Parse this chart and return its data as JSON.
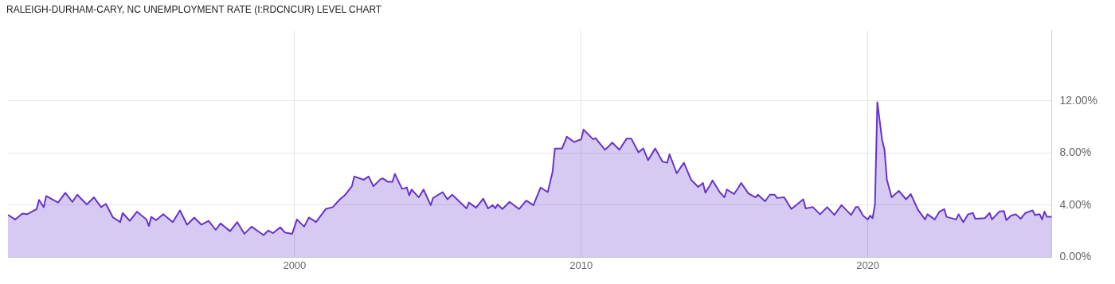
{
  "chart_data": {
    "type": "area",
    "title": "RALEIGH-DURHAM-CARY, NC UNEMPLOYMENT RATE (I:RDCNCUR) LEVEL CHART",
    "x": [
      "1990-01",
      "1990-04",
      "1990-07",
      "1990-09",
      "1991-01",
      "1991-02",
      "1991-04",
      "1991-05",
      "1991-10",
      "1992-01",
      "1992-04",
      "1992-06",
      "1992-10",
      "1993-01",
      "1993-04",
      "1993-06",
      "1993-09",
      "1993-12",
      "1994-01",
      "1994-04",
      "1994-07",
      "1994-11",
      "1994-12",
      "1995-01",
      "1995-03",
      "1995-06",
      "1995-10",
      "1996-01",
      "1996-04",
      "1996-07",
      "1996-10",
      "1997-01",
      "1997-04",
      "1997-06",
      "1997-10",
      "1998-01",
      "1998-04",
      "1998-07",
      "1998-12",
      "1999-02",
      "1999-04",
      "1999-07",
      "1999-09",
      "1999-12",
      "2000-02",
      "2000-05",
      "2000-07",
      "2000-10",
      "2001-02",
      "2001-05",
      "2001-08",
      "2001-10",
      "2002-01",
      "2002-02",
      "2002-06",
      "2002-08",
      "2002-10",
      "2003-01",
      "2003-02",
      "2003-04",
      "2003-06",
      "2003-07",
      "2003-10",
      "2003-12",
      "2004-01",
      "2004-02",
      "2004-05",
      "2004-07",
      "2004-10",
      "2004-11",
      "2005-03",
      "2005-05",
      "2005-07",
      "2006-01",
      "2006-02",
      "2006-05",
      "2006-08",
      "2006-10",
      "2006-12",
      "2007-01",
      "2007-02",
      "2007-04",
      "2007-07",
      "2007-11",
      "2008-02",
      "2008-05",
      "2008-07",
      "2008-08",
      "2008-11",
      "2009-01",
      "2009-02",
      "2009-05",
      "2009-07",
      "2009-10",
      "2010-01",
      "2010-02",
      "2010-06",
      "2010-07",
      "2010-11",
      "2011-01",
      "2011-02",
      "2011-05",
      "2011-08",
      "2011-10",
      "2012-01",
      "2012-03",
      "2012-05",
      "2012-08",
      "2012-11",
      "2013-01",
      "2013-02",
      "2013-05",
      "2013-08",
      "2013-11",
      "2014-02",
      "2014-04",
      "2014-05",
      "2014-07",
      "2014-08",
      "2014-11",
      "2015-01",
      "2015-02",
      "2015-05",
      "2015-07",
      "2015-08",
      "2015-11",
      "2016-02",
      "2016-03",
      "2016-06",
      "2016-08",
      "2016-10",
      "2016-11",
      "2017-02",
      "2017-05",
      "2017-10",
      "2017-11",
      "2018-02",
      "2018-05",
      "2018-08",
      "2018-11",
      "2019-02",
      "2019-06",
      "2019-08",
      "2019-09",
      "2019-11",
      "2020-01",
      "2020-02",
      "2020-03",
      "2020-04",
      "2020-05",
      "2020-07",
      "2020-08",
      "2020-09",
      "2020-11",
      "2021-02",
      "2021-05",
      "2021-07",
      "2021-10",
      "2022-01",
      "2022-02",
      "2022-05",
      "2022-07",
      "2022-09",
      "2022-10",
      "2023-02",
      "2023-03",
      "2023-05",
      "2023-07",
      "2023-09",
      "2023-10",
      "2024-02",
      "2024-04",
      "2024-05",
      "2024-08",
      "2024-10",
      "2024-11",
      "2025-01",
      "2025-03",
      "2025-05",
      "2025-07",
      "2025-10",
      "2025-11",
      "2026-01",
      "2026-02",
      "2026-03",
      "2026-04",
      "2026-06"
    ],
    "series": [
      {
        "color": "#6633cc",
        "values": [
          3.25,
          2.9,
          3.35,
          3.3,
          3.7,
          4.4,
          3.85,
          4.7,
          4.2,
          4.95,
          4.25,
          4.8,
          4.05,
          4.6,
          3.85,
          4.1,
          3.05,
          2.7,
          3.4,
          2.8,
          3.5,
          2.9,
          2.4,
          3.1,
          2.85,
          3.3,
          2.7,
          3.6,
          2.5,
          3.05,
          2.5,
          2.8,
          2.1,
          2.6,
          2.0,
          2.7,
          1.8,
          2.35,
          1.7,
          2.05,
          1.85,
          2.3,
          1.9,
          1.8,
          2.9,
          2.35,
          3.05,
          2.7,
          3.7,
          3.85,
          4.45,
          4.75,
          5.45,
          6.2,
          5.95,
          6.2,
          5.45,
          6.0,
          6.05,
          5.8,
          5.8,
          6.4,
          5.25,
          5.35,
          4.75,
          5.2,
          4.6,
          5.2,
          4.0,
          4.55,
          5.0,
          4.45,
          4.8,
          3.75,
          4.2,
          3.8,
          4.5,
          3.75,
          4.0,
          3.75,
          4.05,
          3.7,
          4.25,
          3.7,
          4.35,
          4.0,
          4.9,
          5.35,
          5.0,
          6.55,
          8.35,
          8.35,
          9.25,
          8.85,
          9.05,
          9.8,
          9.05,
          9.15,
          8.25,
          8.6,
          8.8,
          8.25,
          9.1,
          9.1,
          8.05,
          8.35,
          7.45,
          8.35,
          7.35,
          7.25,
          7.9,
          6.45,
          7.25,
          5.95,
          5.4,
          5.7,
          4.95,
          5.55,
          5.9,
          5.0,
          4.6,
          5.2,
          4.85,
          5.4,
          5.7,
          4.9,
          4.6,
          4.8,
          4.3,
          4.8,
          4.8,
          4.55,
          4.6,
          3.7,
          4.45,
          3.75,
          3.85,
          3.3,
          3.85,
          3.25,
          4.0,
          3.25,
          3.85,
          3.85,
          3.2,
          2.9,
          3.2,
          3.0,
          4.05,
          11.9,
          9.0,
          8.25,
          5.95,
          4.6,
          5.1,
          4.45,
          4.85,
          3.65,
          2.9,
          3.3,
          2.9,
          3.5,
          3.7,
          3.1,
          2.9,
          3.3,
          2.7,
          3.3,
          3.4,
          2.95,
          3.0,
          3.4,
          2.9,
          3.5,
          3.55,
          2.85,
          3.2,
          3.3,
          2.95,
          3.4,
          3.6,
          3.25,
          3.3,
          2.9,
          3.5,
          3.1,
          3.1
        ]
      }
    ],
    "xlim": [
      "1990-01",
      "2026-06"
    ],
    "xticks": [
      "2000",
      "2010",
      "2020"
    ],
    "ylim": [
      0,
      17.4
    ],
    "yticks": [
      {
        "value": 0,
        "label": "0.00%"
      },
      {
        "value": 4,
        "label": "4.00%"
      },
      {
        "value": 8,
        "label": "8.00%"
      },
      {
        "value": 12,
        "label": "12.00%"
      }
    ],
    "grid": true,
    "legend": false
  }
}
